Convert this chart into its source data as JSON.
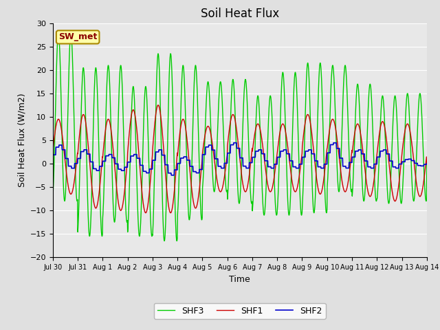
{
  "title": "Soil Heat Flux",
  "ylabel": "Soil Heat Flux (W/m2)",
  "xlabel": "Time",
  "ylim": [
    -20,
    30
  ],
  "yticks": [
    -20,
    -15,
    -10,
    -5,
    0,
    5,
    10,
    15,
    20,
    25,
    30
  ],
  "xtick_labels": [
    "Jul 30",
    "Jul 31",
    "Aug 1",
    "Aug 2",
    "Aug 3",
    "Aug 4",
    "Aug 5",
    "Aug 6",
    "Aug 7",
    "Aug 8",
    "Aug 9",
    "Aug 10",
    "Aug 11",
    "Aug 12",
    "Aug 13",
    "Aug 14"
  ],
  "annotation": "SW_met",
  "shf1_color": "#cc0000",
  "shf2_color": "#0000cc",
  "shf3_color": "#00cc00",
  "fig_bg_color": "#e0e0e0",
  "plot_bg_color": "#e8e8e8",
  "grid_color": "#ffffff",
  "legend_labels": [
    "SHF1",
    "SHF2",
    "SHF3"
  ],
  "n_days": 15,
  "points_per_day": 96,
  "shf1_amp": [
    9.5,
    10.5,
    9.5,
    11.5,
    12.5,
    9.5,
    8.0,
    10.5,
    8.5,
    8.5,
    10.5,
    9.5,
    8.5,
    9.0,
    8.5
  ],
  "shf1_min": [
    -6.5,
    -9.5,
    -10.0,
    -10.5,
    -10.5,
    -9.5,
    -6.0,
    -6.0,
    -6.0,
    -6.0,
    -6.5,
    -6.0,
    -7.0,
    -8.0,
    -7.0
  ],
  "shf2_amp": [
    4.0,
    3.0,
    2.0,
    2.0,
    3.0,
    1.5,
    4.0,
    4.5,
    3.0,
    3.0,
    3.0,
    4.5,
    3.0,
    3.0,
    1.0
  ],
  "shf2_min": [
    -1.0,
    -1.5,
    -1.5,
    -2.0,
    -2.5,
    -2.0,
    -1.0,
    -1.0,
    -1.0,
    -1.0,
    -1.0,
    -1.0,
    -1.0,
    -1.0,
    -0.5
  ],
  "shf3_amp": [
    28.0,
    20.5,
    21.0,
    16.5,
    23.5,
    21.0,
    17.5,
    18.0,
    14.5,
    19.5,
    21.5,
    21.0,
    17.0,
    14.5,
    15.0
  ],
  "shf3_min": [
    -8.0,
    -15.5,
    -12.5,
    -15.5,
    -16.5,
    -12.0,
    -6.0,
    -8.5,
    -11.0,
    -11.0,
    -10.5,
    -6.0,
    -8.0,
    -8.5,
    -8.0
  ],
  "shf3_freq_mult": 2.0
}
